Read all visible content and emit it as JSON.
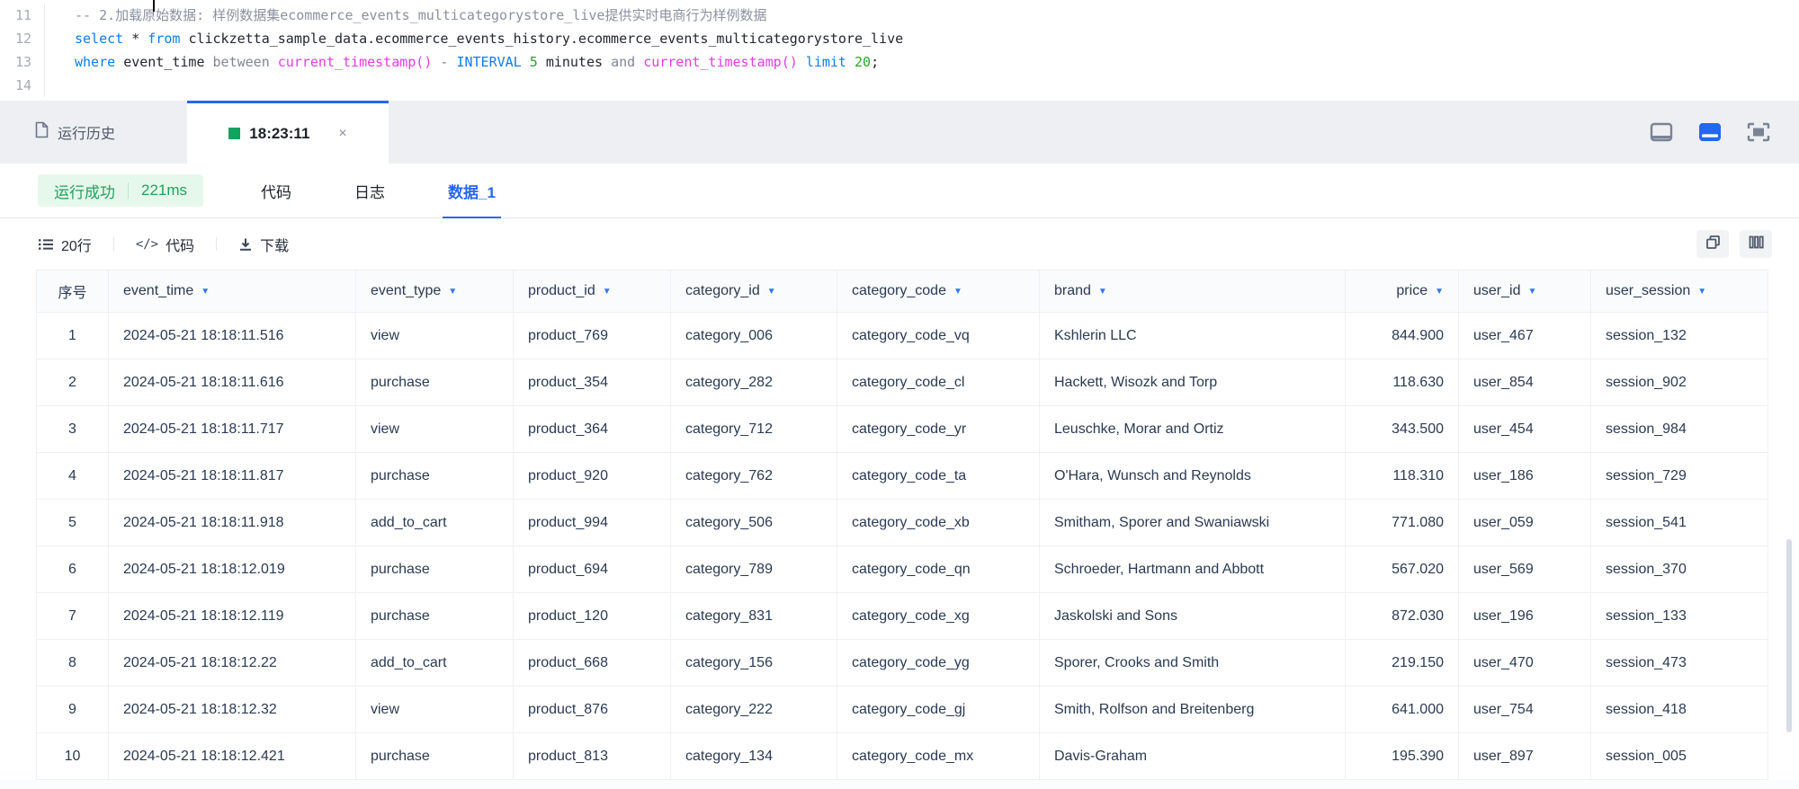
{
  "editor": {
    "lines": [
      {
        "num": "11",
        "tokens": [
          {
            "t": "-- 2.加载原始数据: 样例数据集ecommerce_events_multicategorystore_live提供实时电商行为样例数据",
            "c": "comment"
          }
        ]
      },
      {
        "num": "12",
        "tokens": [
          {
            "t": "select",
            "c": "kw"
          },
          {
            "t": " ",
            "c": "plain"
          },
          {
            "t": "*",
            "c": "plain"
          },
          {
            "t": " ",
            "c": "plain"
          },
          {
            "t": "from",
            "c": "kw"
          },
          {
            "t": " ",
            "c": "plain"
          },
          {
            "t": "clickzetta_sample_data.ecommerce_events_history.ecommerce_events_multicategorystore_live",
            "c": "plain"
          }
        ]
      },
      {
        "num": "13",
        "tokens": [
          {
            "t": "where",
            "c": "kw"
          },
          {
            "t": " ",
            "c": "plain"
          },
          {
            "t": "event_time",
            "c": "plain"
          },
          {
            "t": " ",
            "c": "plain"
          },
          {
            "t": "between",
            "c": "op"
          },
          {
            "t": " ",
            "c": "plain"
          },
          {
            "t": "current_timestamp()",
            "c": "fn"
          },
          {
            "t": " - ",
            "c": "op"
          },
          {
            "t": "INTERVAL",
            "c": "kw"
          },
          {
            "t": " ",
            "c": "plain"
          },
          {
            "t": "5",
            "c": "num"
          },
          {
            "t": " ",
            "c": "plain"
          },
          {
            "t": "minutes",
            "c": "plain"
          },
          {
            "t": " ",
            "c": "plain"
          },
          {
            "t": "and",
            "c": "op"
          },
          {
            "t": " ",
            "c": "plain"
          },
          {
            "t": "current_timestamp()",
            "c": "fn"
          },
          {
            "t": " ",
            "c": "plain"
          },
          {
            "t": "limit",
            "c": "kw"
          },
          {
            "t": " ",
            "c": "plain"
          },
          {
            "t": "20",
            "c": "num"
          },
          {
            "t": ";",
            "c": "plain"
          }
        ]
      },
      {
        "num": "14",
        "tokens": []
      }
    ]
  },
  "tabbar": {
    "history_label": "运行历史",
    "tab_title": "18:23:11",
    "close_glyph": "×"
  },
  "result": {
    "status_label": "运行成功",
    "duration": "221ms",
    "tabs": [
      "代码",
      "日志",
      "数据_1"
    ],
    "active_tab": "数据_1"
  },
  "toolbar": {
    "rows_label": "20行",
    "code_label": "代码",
    "download_label": "下载"
  },
  "table": {
    "columns": [
      {
        "key": "index",
        "label": "序号",
        "filter": false
      },
      {
        "key": "event_time",
        "label": "event_time",
        "filter": true
      },
      {
        "key": "event_type",
        "label": "event_type",
        "filter": true
      },
      {
        "key": "product_id",
        "label": "product_id",
        "filter": true
      },
      {
        "key": "category_id",
        "label": "category_id",
        "filter": true
      },
      {
        "key": "category_code",
        "label": "category_code",
        "filter": true
      },
      {
        "key": "brand",
        "label": "brand",
        "filter": true
      },
      {
        "key": "price",
        "label": "price",
        "filter": true
      },
      {
        "key": "user_id",
        "label": "user_id",
        "filter": true
      },
      {
        "key": "user_session",
        "label": "user_session",
        "filter": true
      }
    ],
    "rows": [
      [
        "1",
        "2024-05-21 18:18:11.516",
        "view",
        "product_769",
        "category_006",
        "category_code_vq",
        "Kshlerin LLC",
        "844.900",
        "user_467",
        "session_132"
      ],
      [
        "2",
        "2024-05-21 18:18:11.616",
        "purchase",
        "product_354",
        "category_282",
        "category_code_cl",
        "Hackett, Wisozk and Torp",
        "118.630",
        "user_854",
        "session_902"
      ],
      [
        "3",
        "2024-05-21 18:18:11.717",
        "view",
        "product_364",
        "category_712",
        "category_code_yr",
        "Leuschke, Morar and Ortiz",
        "343.500",
        "user_454",
        "session_984"
      ],
      [
        "4",
        "2024-05-21 18:18:11.817",
        "purchase",
        "product_920",
        "category_762",
        "category_code_ta",
        "O'Hara, Wunsch and Reynolds",
        "118.310",
        "user_186",
        "session_729"
      ],
      [
        "5",
        "2024-05-21 18:18:11.918",
        "add_to_cart",
        "product_994",
        "category_506",
        "category_code_xb",
        "Smitham, Sporer and Swaniawski",
        "771.080",
        "user_059",
        "session_541"
      ],
      [
        "6",
        "2024-05-21 18:18:12.019",
        "purchase",
        "product_694",
        "category_789",
        "category_code_qn",
        "Schroeder, Hartmann and Abbott",
        "567.020",
        "user_569",
        "session_370"
      ],
      [
        "7",
        "2024-05-21 18:18:12.119",
        "purchase",
        "product_120",
        "category_831",
        "category_code_xg",
        "Jaskolski and Sons",
        "872.030",
        "user_196",
        "session_133"
      ],
      [
        "8",
        "2024-05-21 18:18:12.22",
        "add_to_cart",
        "product_668",
        "category_156",
        "category_code_yg",
        "Sporer, Crooks and Smith",
        "219.150",
        "user_470",
        "session_473"
      ],
      [
        "9",
        "2024-05-21 18:18:12.32",
        "view",
        "product_876",
        "category_222",
        "category_code_gj",
        "Smith, Rolfson and Breitenberg",
        "641.000",
        "user_754",
        "session_418"
      ],
      [
        "10",
        "2024-05-21 18:18:12.421",
        "purchase",
        "product_813",
        "category_134",
        "category_code_mx",
        "Davis-Graham",
        "195.390",
        "user_897",
        "session_005"
      ]
    ]
  },
  "icons": {
    "history": "document-icon",
    "tab_status": "green-square-icon",
    "rows": "list-icon",
    "code": "code-brackets-icon",
    "download": "download-icon",
    "copy": "copy-icon",
    "columns": "columns-icon",
    "filter": "triangle-down-icon"
  },
  "colors": {
    "accent_blue": "#2468f2",
    "success_green": "#22a05e",
    "badge_bg": "#e6f8ec",
    "tab_square_green": "#12a35f",
    "keyword_blue": "#0d7df2",
    "function_magenta": "#e03ee0",
    "number_green": "#28a528",
    "comment_gray": "#8a919f",
    "table_border": "#eef0f4",
    "tabbar_bg": "#edeff2"
  }
}
